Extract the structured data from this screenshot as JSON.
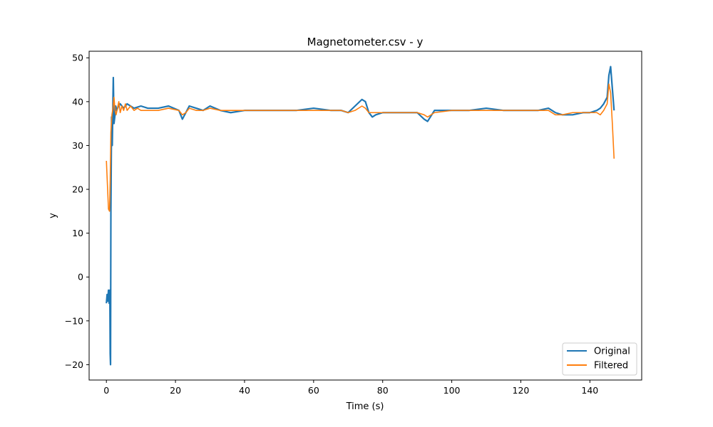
{
  "chart_data": {
    "type": "line",
    "title": "Magnetometer.csv - y",
    "xlabel": "Time (s)",
    "ylabel": "y",
    "xlim": [
      -5,
      155
    ],
    "ylim": [
      -23.5,
      51.5
    ],
    "xticks": [
      0,
      20,
      40,
      60,
      80,
      100,
      120,
      140
    ],
    "yticks": [
      -20,
      -10,
      0,
      10,
      20,
      30,
      40,
      50
    ],
    "xtick_labels": [
      "0",
      "20",
      "40",
      "60",
      "80",
      "100",
      "120",
      "140"
    ],
    "ytick_labels": [
      "−20",
      "−10",
      "0",
      "10",
      "20",
      "30",
      "40",
      "50"
    ],
    "grid": false,
    "legend_position": "lower-right",
    "series": [
      {
        "name": "Original",
        "color": "#1f77b4",
        "x": [
          0,
          0.2,
          0.4,
          0.6,
          0.8,
          1.0,
          1.1,
          1.2,
          1.3,
          1.5,
          1.7,
          2.0,
          2.2,
          2.5,
          2.7,
          3.0,
          3.5,
          4,
          5,
          6,
          8,
          10,
          12,
          15,
          18,
          21,
          22,
          23,
          24,
          26,
          28,
          30,
          33,
          36,
          40,
          45,
          50,
          55,
          60,
          65,
          68,
          70,
          72,
          74,
          75,
          76,
          77,
          78,
          80,
          85,
          90,
          92,
          93,
          95,
          100,
          105,
          110,
          115,
          120,
          125,
          128,
          130,
          132,
          135,
          138,
          140,
          142,
          143,
          144,
          145,
          145.5,
          146,
          146.5,
          147
        ],
        "values": [
          -6,
          -4,
          -5.5,
          -3,
          -6,
          -3,
          -17.5,
          -20,
          15,
          36.5,
          30,
          45.5,
          35,
          37,
          39,
          38,
          39,
          39.5,
          38.5,
          39.5,
          38.5,
          39,
          38.5,
          38.5,
          39,
          38,
          36,
          37.5,
          39,
          38.5,
          38,
          39,
          38,
          37.5,
          38,
          38,
          38,
          38,
          38.5,
          38,
          38,
          37.5,
          39,
          40.5,
          40,
          37.5,
          36.5,
          37,
          37.5,
          37.5,
          37.5,
          36,
          35.5,
          38,
          38,
          38,
          38.5,
          38,
          38,
          38,
          38.5,
          37.5,
          37,
          37,
          37.5,
          37.5,
          38,
          38.5,
          39.5,
          41,
          46,
          48,
          43,
          38
        ]
      },
      {
        "name": "Filtered",
        "color": "#ff7f0e",
        "x": [
          0,
          0.3,
          0.6,
          0.9,
          1.1,
          1.3,
          1.6,
          1.9,
          2.2,
          2.5,
          2.8,
          3.2,
          3.6,
          4.0,
          4.5,
          5,
          5.5,
          6,
          7,
          8,
          9,
          10,
          12,
          15,
          18,
          21,
          22,
          23,
          24,
          26,
          28,
          30,
          33,
          36,
          40,
          45,
          50,
          55,
          60,
          65,
          68,
          70,
          72,
          74,
          75,
          76,
          77,
          78,
          80,
          85,
          90,
          92,
          93,
          95,
          100,
          105,
          110,
          115,
          120,
          125,
          128,
          130,
          132,
          135,
          138,
          140,
          142,
          143,
          144,
          145,
          145.5,
          146,
          146.5,
          147
        ],
        "values": [
          26.5,
          21,
          15.5,
          15,
          22,
          33,
          37,
          38.5,
          41,
          38,
          37,
          38.5,
          40,
          37.5,
          39,
          38,
          39.5,
          38,
          39,
          38,
          38.5,
          38,
          38,
          38,
          38.5,
          38,
          37,
          37.5,
          38.5,
          38,
          38,
          38.5,
          38,
          38,
          38,
          38,
          38,
          38,
          38,
          38,
          38,
          37.5,
          38,
          39,
          38.5,
          37.5,
          37.5,
          37.5,
          37.5,
          37.5,
          37.5,
          37,
          36.5,
          37.5,
          38,
          38,
          38,
          38,
          38,
          38,
          38,
          37,
          37,
          37.5,
          37.5,
          37.5,
          37.5,
          37,
          38,
          39.5,
          44,
          42,
          35,
          27
        ]
      }
    ]
  }
}
